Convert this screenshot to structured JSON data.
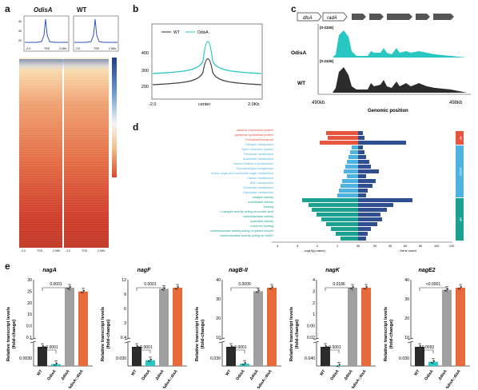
{
  "panels": {
    "a": "a",
    "b": "b",
    "c": "c",
    "d": "d",
    "e": "e"
  },
  "panel_a": {
    "col1": "OdisA",
    "col2": "WT",
    "profile_ticks": [
      "40",
      "30",
      "20"
    ],
    "profile_xticks": [
      "-2.0",
      "TSS",
      "2.0Kb"
    ],
    "heat_xticks": [
      "-2.0",
      "TSS",
      "2.0Kb"
    ]
  },
  "panel_c": {
    "genes": [
      "dlsA",
      "radA"
    ],
    "range1": "[0-2326]",
    "range2": "[0-2326]",
    "track1": "OdisA",
    "track2": "WT",
    "left_coord": "490kb",
    "right_coord": "498kb",
    "xlabel": "Genomic position",
    "colors": {
      "odisa": "#29c7c2",
      "wt": "#2b2b2b"
    }
  },
  "panel_d": {
    "terms": [
      "alkaline transferase protein",
      "glutamine synthetase protein",
      "Fe/sulfated transport",
      "Nitrogen metabolism",
      "Type I secretion system",
      "Flavonoid metabolism",
      "Nucleotide metabolism",
      "Carbon fixation in prokaryotes",
      "Glycolysis/gluconeogenesis",
      "Amino sugar and nucleotide sugar metabolism",
      "Carbon metabolism",
      "ABC transporters",
      "Glutamate metabolism",
      "Glyoxylate metabolism",
      "catalytic activity",
      "transferase activity",
      "binding",
      "1 catalytic activity acting on nucleic acid",
      "oxidoreductase activity",
      "hydrolase activity",
      "metal ion binding",
      "oxidoreductase activity acting on paired donors",
      "oxidoreductase activity acting on NADH"
    ],
    "left_axis_label": "-log10(p-value)",
    "right_axis_label": "Gene count",
    "left_ticks": [
      "4",
      "3",
      "2",
      "1",
      "0"
    ],
    "right_ticks": [
      "0",
      "20",
      "40",
      "60",
      "80",
      "100",
      "120"
    ],
    "categories": [
      "BP",
      "KEGG",
      "MF"
    ],
    "colors": {
      "bp": "#e8553e",
      "kegg": "#4fb3e0",
      "mf": "#1aa192",
      "count": "#2f4f8f"
    }
  },
  "panel_e": {
    "ylabel_line1": "Relative transcript levels",
    "ylabel_line2": "(fold-change)",
    "xcats": [
      "WT",
      "OdisA",
      "ΔdisA",
      "ΔdisA::disA"
    ],
    "colors": {
      "wt": "#2b2b2b",
      "odisa": "#29c7c2",
      "delta": "#a0a0a0",
      "comp": "#e8693a"
    },
    "genes": [
      {
        "name": "nagA",
        "upper_ticks": [
          "0.0030",
          "0.1",
          "0.0",
          "15",
          "20",
          "25",
          "30"
        ],
        "p1": "<0.0001",
        "p2": "0.0001",
        "values": [
          1,
          0.1,
          26,
          24
        ]
      },
      {
        "name": "nagF",
        "upper_ticks": [
          "0.030",
          "0.4",
          "3",
          "6",
          "9",
          "12"
        ],
        "p1": "<0.0001",
        "p2": "0.0001",
        "values": [
          1,
          0.3,
          9,
          9.2
        ]
      },
      {
        "name": "nagB-II",
        "upper_ticks": [
          "0.030",
          "10",
          "20",
          "30",
          "40"
        ],
        "p1": "<0.0001",
        "p2": "0.0009",
        "values": [
          1,
          0.12,
          26,
          28
        ]
      },
      {
        "name": "nagK",
        "upper_ticks": [
          "0.040",
          "0.02",
          "0.00",
          "1",
          "2",
          "3",
          "4"
        ],
        "p1": "<0.0001",
        "p2": "0.0186",
        "values": [
          1,
          0.03,
          2.5,
          2.5
        ]
      },
      {
        "name": "nagE2",
        "upper_ticks": [
          "0.030",
          "10",
          "20",
          "30",
          "40"
        ],
        "p1": "0.0092",
        "p2": "<0.0001",
        "values": [
          1,
          0.22,
          23,
          24
        ]
      }
    ]
  }
}
